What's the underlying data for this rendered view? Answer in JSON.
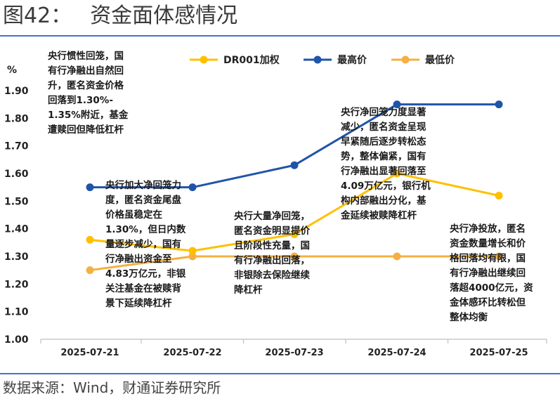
{
  "header": {
    "fig_num": "图42：",
    "title": "资金面体感情况"
  },
  "footer": {
    "source": "数据来源：Wind，财通证券研究所"
  },
  "chart_data": {
    "type": "line",
    "title": "资金面体感情况",
    "ylabel": "%",
    "ylim": [
      1.0,
      1.9
    ],
    "yticks": [
      "1.00",
      "1.10",
      "1.20",
      "1.30",
      "1.40",
      "1.50",
      "1.60",
      "1.70",
      "1.80",
      "1.90"
    ],
    "categories": [
      "2025-07-21",
      "2025-07-22",
      "2025-07-23",
      "2025-07-24",
      "2025-07-25"
    ],
    "grid": false,
    "legend_position": "top",
    "series": [
      {
        "name": "DR001加权",
        "color": "#ffc000",
        "values": [
          1.36,
          1.32,
          1.38,
          1.6,
          1.52
        ]
      },
      {
        "name": "最高价",
        "color": "#1f55a8",
        "values": [
          1.55,
          1.55,
          1.63,
          1.85,
          1.85
        ]
      },
      {
        "name": "最低价",
        "color": "#f4b042",
        "values": [
          1.25,
          1.3,
          1.3,
          1.3,
          1.3
        ]
      }
    ],
    "annotations": [
      {
        "id": "ann1",
        "lines": [
          "央行惯性回笼，国",
          "有行净融出自然回",
          "升，匿名资金价格",
          "回落到1.30%-",
          "1.35%附近，基金",
          "遭赎回但降低杠杆"
        ]
      },
      {
        "id": "ann2",
        "lines": [
          "央行加大净回笼力",
          "度，匿名资金尾盘",
          "价格虽稳定在",
          "1.30%，但日内数",
          "量逐步减少，国有",
          "行净融出资金至",
          "4.83万亿元，非银",
          "关注基金在被赎背",
          "景下延续降杠杆"
        ]
      },
      {
        "id": "ann3",
        "lines": [
          "央行大量净回笼，",
          "匿名资金明显提价",
          "且阶段性充量，国",
          "有行净融出回落，",
          "非银除去保险继续",
          "降杠杆"
        ]
      },
      {
        "id": "ann4",
        "lines": [
          "央行净回笼力度显著",
          "减少，匿名资金呈现",
          "早紧随后逐步转松态",
          "势，整体偏紧，国有",
          "行净融出显著回落至",
          "4.09万亿元，银行机",
          "构内部融出分化，基",
          "金延续被赎降杠杆"
        ]
      },
      {
        "id": "ann5",
        "lines": [
          "央行净投放，匿名",
          "资金数量增长和价",
          "格回落均有限，国",
          "有行净融出继续回",
          "落超4000亿元，资",
          "金体感环比转松但",
          "整体均衡"
        ]
      }
    ]
  }
}
